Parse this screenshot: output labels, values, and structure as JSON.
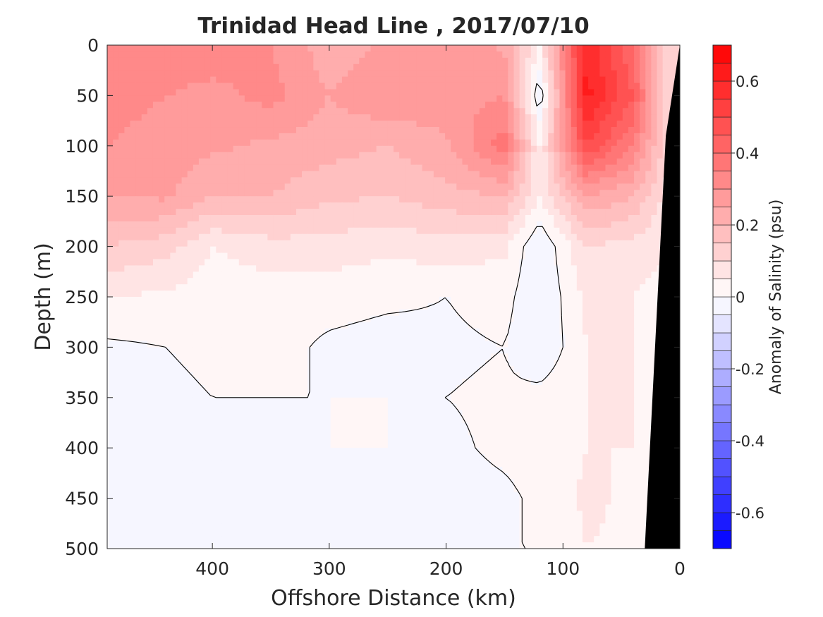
{
  "chart_data": {
    "type": "heatmap",
    "title": "Trinidad Head Line , 2017/07/10",
    "xlabel": "Offshore Distance (km)",
    "ylabel": "Depth (m)",
    "colorbar_label": "Anomaly of Salinity (psu)",
    "xlim": [
      490,
      0
    ],
    "ylim": [
      500,
      0
    ],
    "x_ticks": [
      400,
      300,
      200,
      100,
      0
    ],
    "y_ticks": [
      0,
      50,
      100,
      150,
      200,
      250,
      300,
      350,
      400,
      450,
      500
    ],
    "colorbar_range": [
      -0.7,
      0.7
    ],
    "colorbar_ticks": [
      0.6,
      0.4,
      0.2,
      0,
      -0.2,
      -0.4,
      -0.6
    ],
    "colormap": {
      "negative": "#0000ff",
      "zero": "#ffffff",
      "positive": "#ff0000"
    },
    "contour_level": 0,
    "bathymetry_color": "#000000",
    "distance_km": [
      490,
      440,
      400,
      350,
      300,
      250,
      200,
      150,
      120,
      80,
      40,
      10
    ],
    "depth_m": [
      0,
      50,
      100,
      150,
      200,
      250,
      300,
      350,
      400,
      450,
      500
    ],
    "salinity_anomaly": [
      [
        0.3,
        0.35,
        0.34,
        0.3,
        0.22,
        0.26,
        0.3,
        0.24,
        0.05,
        0.6,
        0.4,
        0.1
      ],
      [
        0.32,
        0.3,
        0.28,
        0.32,
        0.25,
        0.3,
        0.28,
        0.3,
        -0.05,
        0.62,
        0.45,
        0.1
      ],
      [
        0.3,
        0.28,
        0.26,
        0.24,
        0.22,
        0.2,
        0.24,
        0.38,
        0.05,
        0.5,
        0.35,
        0.1
      ],
      [
        0.25,
        0.26,
        0.2,
        0.2,
        0.16,
        0.15,
        0.18,
        0.2,
        0.05,
        0.25,
        0.2,
        0.08
      ],
      [
        0.15,
        0.12,
        0.05,
        0.08,
        0.08,
        0.06,
        0.08,
        0.06,
        -0.05,
        0.1,
        0.08,
        0.05
      ],
      [
        0.05,
        0.04,
        0.02,
        0.02,
        0.02,
        0.01,
        0.0,
        0.02,
        -0.05,
        0.06,
        0.05,
        0.03
      ],
      [
        -0.01,
        0.0,
        0.01,
        0.02,
        -0.01,
        -0.02,
        -0.01,
        0.0,
        -0.05,
        0.05,
        0.05,
        0.02
      ],
      [
        0.0,
        -0.01,
        0.0,
        0.0,
        0.0,
        0.0,
        0.0,
        0.01,
        0.02,
        0.05,
        0.05,
        0.02
      ],
      [
        -0.02,
        -0.04,
        -0.01,
        -0.03,
        0.0,
        0.0,
        -0.01,
        0.01,
        0.02,
        0.05,
        0.05,
        0.02
      ],
      [
        -0.01,
        -0.03,
        0.0,
        -0.03,
        -0.01,
        0.0,
        -0.02,
        -0.01,
        0.01,
        0.06,
        0.04,
        0.02
      ],
      [
        0.0,
        0.0,
        0.0,
        0.0,
        0.0,
        0.0,
        0.0,
        0.0,
        0.0,
        0.05,
        0.04,
        0.02
      ]
    ]
  }
}
